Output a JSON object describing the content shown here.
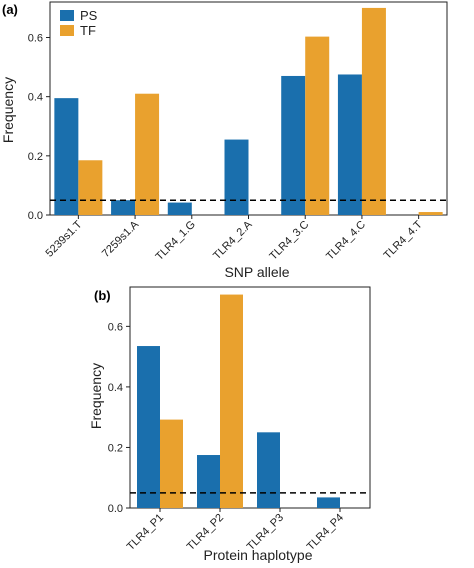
{
  "colors": {
    "PS": "#1a6fad",
    "TF": "#e9a12e"
  },
  "chart_data": [
    {
      "type": "bar",
      "panel_label": "(a)",
      "categories": [
        "5239s1.T",
        "7259s1.A",
        "TLR4_1.G",
        "TLR4_2.A",
        "TLR4_3.C",
        "TLR4_4.C",
        "TLR4_4.T"
      ],
      "series": [
        {
          "name": "PS",
          "values": [
            0.395,
            0.05,
            0.042,
            0.255,
            0.47,
            0.475,
            0.0
          ]
        },
        {
          "name": "TF",
          "values": [
            0.185,
            0.41,
            0.0,
            0.0,
            0.603,
            0.7,
            0.01
          ]
        }
      ],
      "xlabel": "SNP allele",
      "ylabel": "Frequency",
      "ylim": [
        0,
        0.72
      ],
      "yticks": [
        0.0,
        0.2,
        0.4,
        0.6
      ],
      "ytick_labels": [
        "0.0",
        "0.2",
        "0.4",
        "0.6"
      ],
      "reference_line": 0.05,
      "legend": "top-left",
      "grid": false
    },
    {
      "type": "bar",
      "panel_label": "(b)",
      "categories": [
        "TLR4_P1",
        "TLR4_P2",
        "TLR4_P3",
        "TLR4_P4"
      ],
      "series": [
        {
          "name": "PS",
          "values": [
            0.535,
            0.175,
            0.25,
            0.035
          ]
        },
        {
          "name": "TF",
          "values": [
            0.292,
            0.705,
            0.0,
            0.0
          ]
        }
      ],
      "xlabel": "Protein haplotype",
      "ylabel": "Frequency",
      "ylim": [
        0,
        0.73
      ],
      "yticks": [
        0.0,
        0.2,
        0.4,
        0.6
      ],
      "ytick_labels": [
        "0.0",
        "0.2",
        "0.4",
        "0.6"
      ],
      "reference_line": 0.05,
      "grid": false
    }
  ]
}
